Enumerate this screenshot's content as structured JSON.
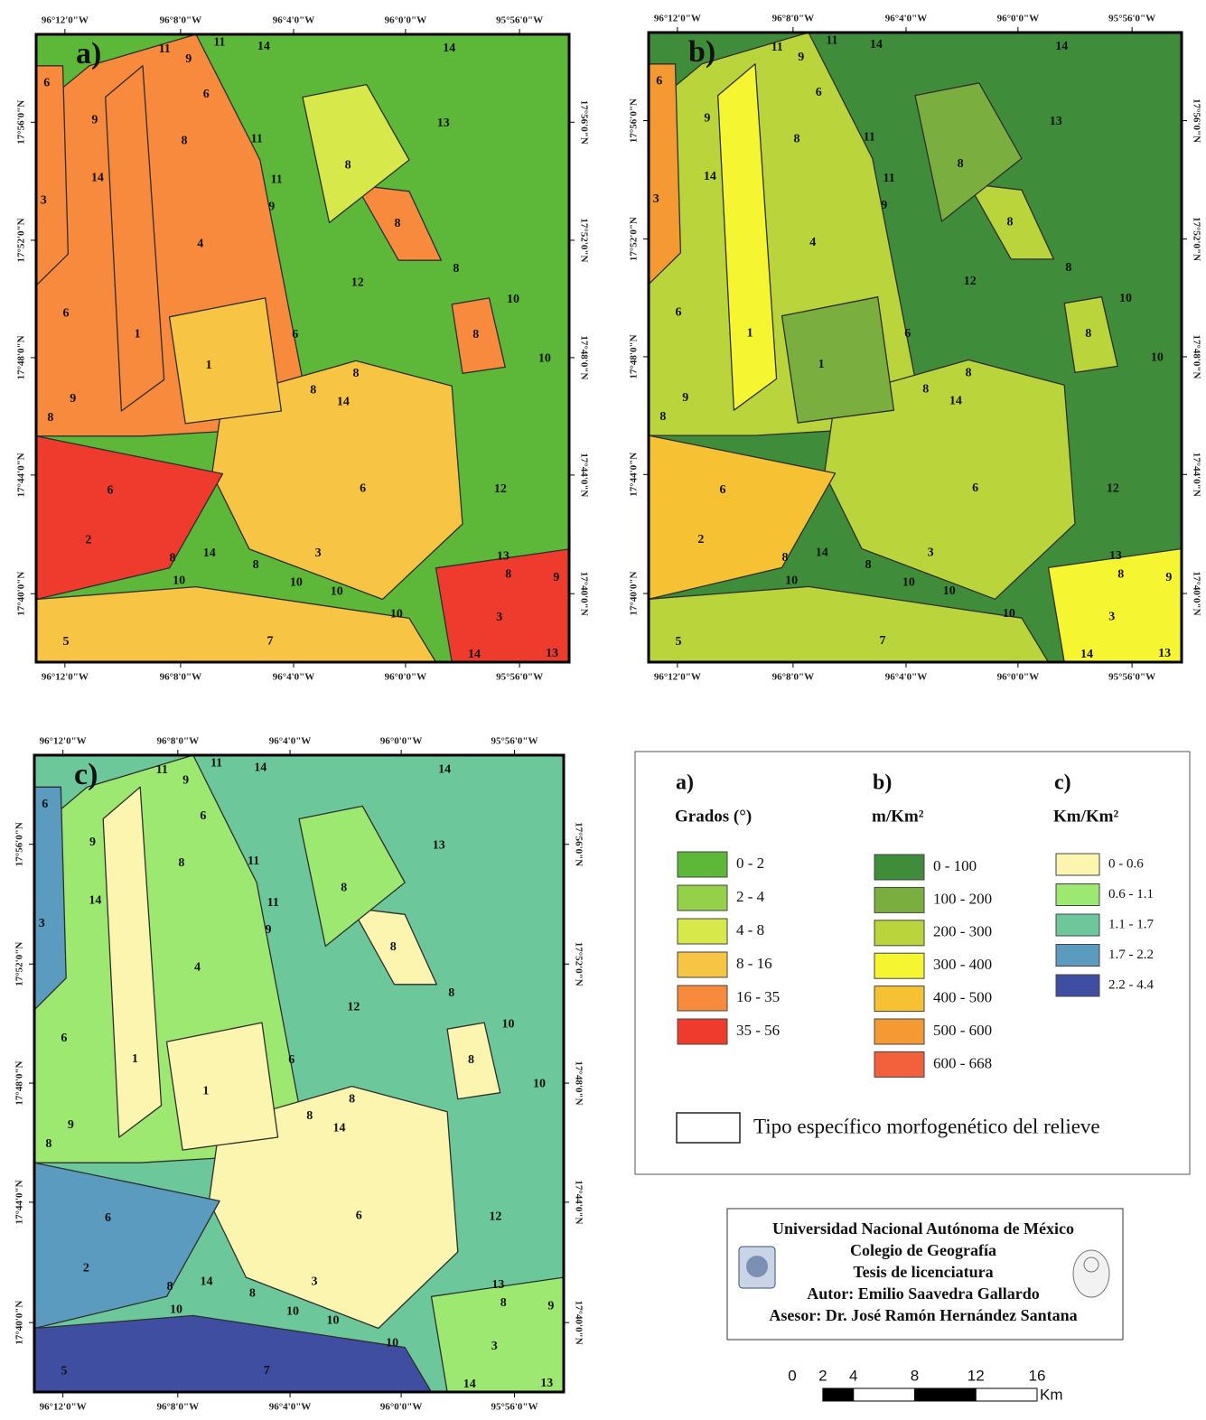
{
  "panels": [
    "a)",
    "b)",
    "c)"
  ],
  "longitudes": [
    "96°12'0\"W",
    "96°8'0\"W",
    "96°4'0\"W",
    "96°0'0\"W",
    "95°56'0\"W"
  ],
  "latitudes": [
    "17°56'0\"N",
    "17°52'0\"N",
    "17°48'0\"N",
    "17°44'0\"N",
    "17°40'0\"N"
  ],
  "map_labels": [
    "11",
    "9",
    "11",
    "14",
    "14",
    "6",
    "6",
    "9",
    "13",
    "8",
    "11",
    "8",
    "14",
    "11",
    "3",
    "9",
    "8",
    "4",
    "8",
    "12",
    "10",
    "6",
    "1",
    "6",
    "8",
    "10",
    "1",
    "8",
    "8",
    "14",
    "9",
    "8",
    "6",
    "6",
    "12",
    "2",
    "14",
    "8",
    "3",
    "13",
    "8",
    "10",
    "10",
    "8",
    "9",
    "10",
    "10",
    "3",
    "5",
    "7",
    "14",
    "13"
  ],
  "legend": {
    "a": {
      "unit": "Grados (°)",
      "items": [
        {
          "label": "0 - 2",
          "color": "#5db83a"
        },
        {
          "label": "2 - 4",
          "color": "#95d04a"
        },
        {
          "label": "4 - 8",
          "color": "#d6e84a"
        },
        {
          "label": "8 - 16",
          "color": "#f7c444"
        },
        {
          "label": "16 - 35",
          "color": "#f78a3c"
        },
        {
          "label": "35 - 56",
          "color": "#ee3b2e"
        }
      ]
    },
    "b": {
      "unit": "m/Km²",
      "items": [
        {
          "label": "0 - 100",
          "color": "#3f8d3b"
        },
        {
          "label": "100 - 200",
          "color": "#7aaf40"
        },
        {
          "label": "200 - 300",
          "color": "#bad43c"
        },
        {
          "label": "300 - 400",
          "color": "#f6f532"
        },
        {
          "label": "400 - 500",
          "color": "#f6c233"
        },
        {
          "label": "500 - 600",
          "color": "#f59a33"
        },
        {
          "label": "600 - 668",
          "color": "#f2613b"
        }
      ]
    },
    "c": {
      "unit": "Km/Km²",
      "items": [
        {
          "label": "0 - 0.6",
          "color": "#fbf5b0"
        },
        {
          "label": "0.6 - 1.1",
          "color": "#9de870"
        },
        {
          "label": "1.1 - 1.7",
          "color": "#6cc79a"
        },
        {
          "label": "1.7 - 2.2",
          "color": "#5b9bc0"
        },
        {
          "label": "2.2 - 4.4",
          "color": "#3f4ea0"
        }
      ]
    },
    "boundary": "Tipo específico morfogenético del relieve"
  },
  "credits": [
    "Universidad Nacional Autónoma de México",
    "Colegio de Geografía",
    "Tesis de licenciatura",
    "Autor: Emilio Saavedra Gallardo",
    "Asesor: Dr. José Ramón Hernández Santana"
  ],
  "scale": {
    "ticks": [
      0,
      2,
      4,
      8,
      12,
      16
    ],
    "unit": "Km"
  }
}
